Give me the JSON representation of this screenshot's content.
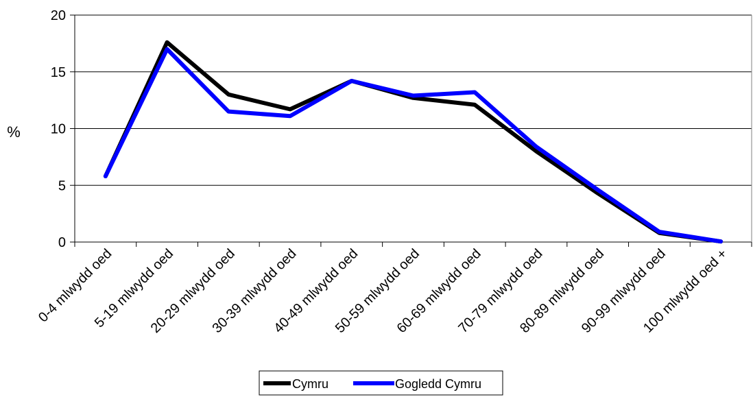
{
  "chart_data": {
    "type": "line",
    "title": "",
    "xlabel": "",
    "ylabel": "%",
    "ylim": [
      0,
      20
    ],
    "yticks": [
      0,
      5,
      10,
      15,
      20
    ],
    "grid": "horizontal",
    "legend_position": "bottom",
    "categories": [
      "0-4 mlwydd oed",
      "5-19 mlwydd oed",
      "20-29 mlwydd oed",
      "30-39 mlwydd oed",
      "40-49 mlwydd oed",
      "50-59 mlwydd oed",
      "60-69 mlwydd oed",
      "70-79 mlwydd oed",
      "80-89 mlwydd oed",
      "90-99 mlwydd oed",
      "100 mlwydd oed +"
    ],
    "series": [
      {
        "name": "Cymru",
        "color": "#000000",
        "values": [
          5.8,
          17.6,
          13.0,
          11.7,
          14.2,
          12.7,
          12.1,
          8.0,
          4.3,
          0.8,
          0.05
        ]
      },
      {
        "name": "Gogledd Cymru",
        "color": "#0000ff",
        "values": [
          5.8,
          17.0,
          11.5,
          11.1,
          14.2,
          12.9,
          13.2,
          8.4,
          4.6,
          0.9,
          0.05
        ]
      }
    ]
  }
}
